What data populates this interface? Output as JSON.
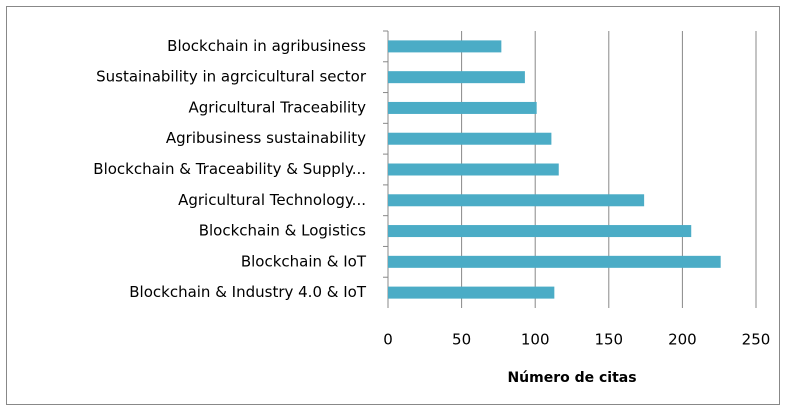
{
  "chart_data": {
    "type": "bar",
    "orientation": "horizontal",
    "categories": [
      "Blockchain in agribusiness",
      "Sustainability in agrcicultural sector",
      "Agricultural Traceability",
      "Agribusiness sustainability",
      "Blockchain & Traceability & Supply...",
      "Agricultural Technology...",
      "Blockchain & Logistics",
      "Blockchain & IoT",
      "Blockchain & Industry 4.0 & IoT"
    ],
    "values": [
      77,
      93,
      101,
      111,
      116,
      174,
      206,
      226,
      113
    ],
    "color": "#4bacc6",
    "x_label": "Número de citas",
    "xlim": [
      0,
      250
    ],
    "xticks": [
      0,
      50,
      100,
      150,
      200,
      250
    ],
    "grid": true
  }
}
